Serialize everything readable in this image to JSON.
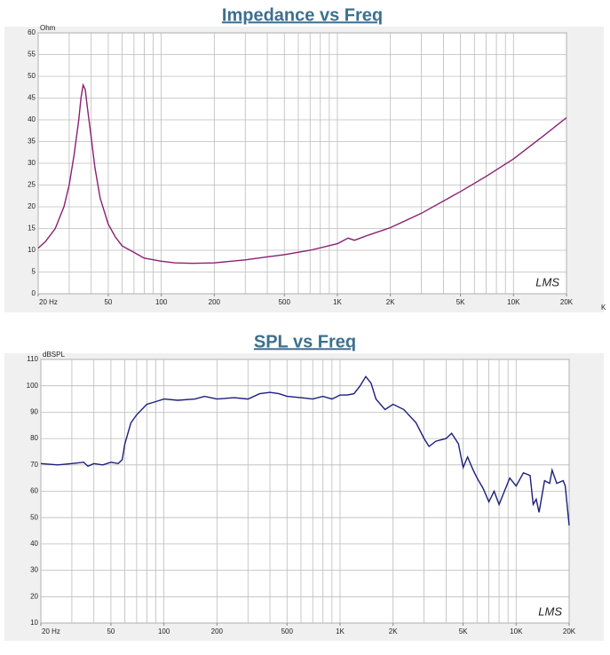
{
  "chart_data": [
    {
      "type": "line",
      "title": "Impedance vs Freq",
      "y_label": "Ohm",
      "watermark": "LMS",
      "annotation": "K",
      "color": "#8b1f72",
      "log_x": true,
      "grid": true,
      "xlim": [
        20,
        20000
      ],
      "ylim": [
        0,
        60
      ],
      "yticks": [
        0,
        5,
        10,
        15,
        20,
        25,
        30,
        35,
        40,
        45,
        50,
        55,
        60
      ],
      "xticks": [
        {
          "value": 20,
          "label": "20  Hz"
        },
        50,
        100,
        200,
        500,
        {
          "value": 1000,
          "label": "1K"
        },
        {
          "value": 2000,
          "label": "2K"
        },
        {
          "value": 5000,
          "label": "5K"
        },
        {
          "value": 10000,
          "label": "10K"
        },
        {
          "value": 20000,
          "label": "20K"
        }
      ],
      "xgrid": [
        20,
        30,
        40,
        50,
        60,
        70,
        80,
        90,
        100,
        200,
        300,
        400,
        500,
        600,
        700,
        800,
        900,
        1000,
        2000,
        3000,
        4000,
        5000,
        6000,
        7000,
        8000,
        9000,
        10000,
        20000
      ],
      "x": [
        20,
        22,
        25,
        28,
        30,
        32,
        34,
        35,
        36,
        37,
        38,
        40,
        42,
        45,
        50,
        55,
        60,
        70,
        80,
        100,
        120,
        150,
        200,
        300,
        400,
        500,
        700,
        1000,
        1150,
        1250,
        1500,
        2000,
        3000,
        5000,
        7000,
        10000,
        15000,
        20000
      ],
      "values": [
        10.5,
        12,
        15,
        20,
        25,
        32,
        40,
        45,
        48,
        47,
        43,
        36,
        29,
        22,
        16,
        13,
        11,
        9.5,
        8.2,
        7.5,
        7.1,
        7.0,
        7.1,
        7.8,
        8.5,
        9,
        10,
        11.5,
        12.8,
        12.3,
        13.5,
        15.2,
        18.5,
        23.5,
        27,
        31,
        36.5,
        40.5
      ]
    },
    {
      "type": "line",
      "title": "SPL vs Freq",
      "y_label": "dBSPL",
      "watermark": "LMS",
      "color": "#1b1f7a",
      "log_x": true,
      "grid": true,
      "xlim": [
        20,
        20000
      ],
      "ylim": [
        10,
        110
      ],
      "yticks": [
        10,
        20,
        30,
        40,
        50,
        60,
        70,
        80,
        90,
        100,
        110
      ],
      "xticks": [
        {
          "value": 20,
          "label": "20  Hz"
        },
        50,
        100,
        200,
        500,
        {
          "value": 1000,
          "label": "1K"
        },
        {
          "value": 2000,
          "label": "2K"
        },
        {
          "value": 5000,
          "label": "5K"
        },
        {
          "value": 10000,
          "label": "10K"
        },
        {
          "value": 20000,
          "label": "20K"
        }
      ],
      "xgrid": [
        20,
        30,
        40,
        50,
        60,
        70,
        80,
        90,
        100,
        200,
        300,
        400,
        500,
        600,
        700,
        800,
        900,
        1000,
        2000,
        3000,
        4000,
        5000,
        6000,
        7000,
        8000,
        9000,
        10000,
        20000
      ],
      "x": [
        20,
        25,
        30,
        35,
        37,
        40,
        45,
        50,
        55,
        58,
        60,
        65,
        70,
        80,
        90,
        100,
        120,
        150,
        170,
        200,
        250,
        300,
        350,
        400,
        450,
        500,
        600,
        700,
        800,
        900,
        1000,
        1100,
        1200,
        1300,
        1400,
        1500,
        1600,
        1800,
        2000,
        2300,
        2700,
        3000,
        3200,
        3500,
        4000,
        4300,
        4700,
        5000,
        5300,
        5700,
        6000,
        6500,
        7000,
        7500,
        8000,
        8700,
        9200,
        10000,
        11000,
        12000,
        12500,
        13000,
        13500,
        14500,
        15500,
        16000,
        17000,
        18500,
        19000,
        20000
      ],
      "values": [
        70.5,
        70,
        70.5,
        71,
        69.5,
        70.5,
        70,
        71,
        70.5,
        72,
        78,
        86,
        89,
        93,
        94,
        95,
        94.5,
        95,
        96,
        95,
        95.5,
        95,
        97,
        97.5,
        97,
        96,
        95.5,
        95,
        96,
        95,
        96.5,
        96.5,
        97,
        100,
        103.5,
        101,
        95,
        91,
        93,
        91,
        86,
        80,
        77,
        79,
        80,
        82,
        78,
        69,
        73,
        68,
        65,
        61,
        56,
        60,
        55,
        61,
        65,
        62,
        67,
        66,
        55,
        57,
        52,
        64,
        63,
        68,
        63,
        64,
        62,
        47
      ]
    }
  ]
}
